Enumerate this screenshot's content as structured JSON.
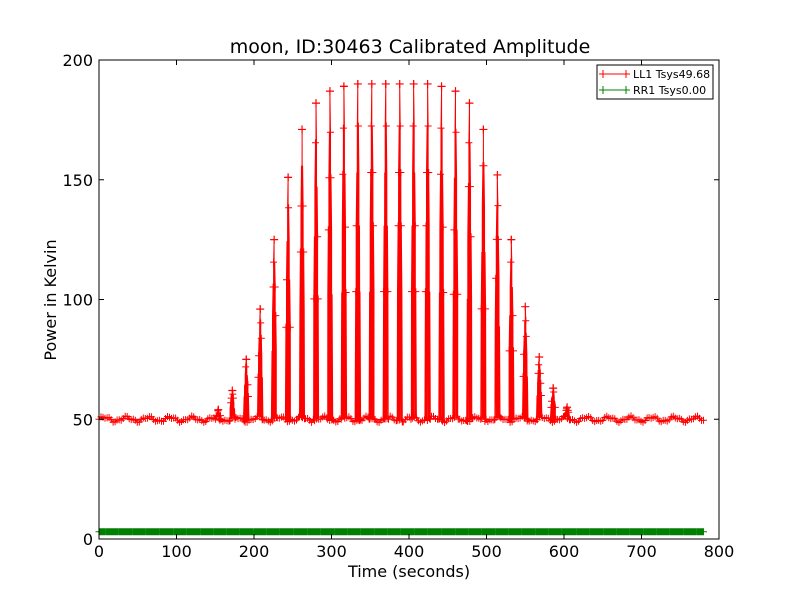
{
  "chart_data": {
    "type": "line",
    "title": "moon, ID:30463 Calibrated Amplitude",
    "xlabel": "Time (seconds)",
    "ylabel": "Power in Kelvin",
    "xlim": [
      0,
      800
    ],
    "ylim": [
      0,
      200
    ],
    "xticks": [
      0,
      100,
      200,
      300,
      400,
      500,
      600,
      700,
      800
    ],
    "yticks": [
      0,
      50,
      100,
      150,
      200
    ],
    "grid": false,
    "legend_position": "top-right",
    "series": [
      {
        "name": "LL1 Tsys49.68",
        "color": "#ff0000",
        "marker": "plus",
        "baseline": 50,
        "x_range": [
          0,
          780
        ],
        "scan_period_seconds": 18.2,
        "peaks": [
          {
            "x": 154,
            "y": 54
          },
          {
            "x": 172,
            "y": 62
          },
          {
            "x": 190,
            "y": 75
          },
          {
            "x": 208,
            "y": 96
          },
          {
            "x": 226,
            "y": 125
          },
          {
            "x": 244,
            "y": 151
          },
          {
            "x": 262,
            "y": 171
          },
          {
            "x": 280,
            "y": 182
          },
          {
            "x": 298,
            "y": 187
          },
          {
            "x": 316,
            "y": 189
          },
          {
            "x": 334,
            "y": 190
          },
          {
            "x": 352,
            "y": 190
          },
          {
            "x": 370,
            "y": 190
          },
          {
            "x": 388,
            "y": 190
          },
          {
            "x": 406,
            "y": 190
          },
          {
            "x": 424,
            "y": 190
          },
          {
            "x": 442,
            "y": 189
          },
          {
            "x": 460,
            "y": 187
          },
          {
            "x": 478,
            "y": 182
          },
          {
            "x": 496,
            "y": 171
          },
          {
            "x": 514,
            "y": 152
          },
          {
            "x": 532,
            "y": 125
          },
          {
            "x": 550,
            "y": 97
          },
          {
            "x": 568,
            "y": 76
          },
          {
            "x": 586,
            "y": 63
          },
          {
            "x": 604,
            "y": 55
          }
        ]
      },
      {
        "name": "RR1 Tsys0.00",
        "color": "#008000",
        "marker": "plus",
        "constant_value": 3,
        "x_range": [
          0,
          780
        ]
      }
    ]
  }
}
